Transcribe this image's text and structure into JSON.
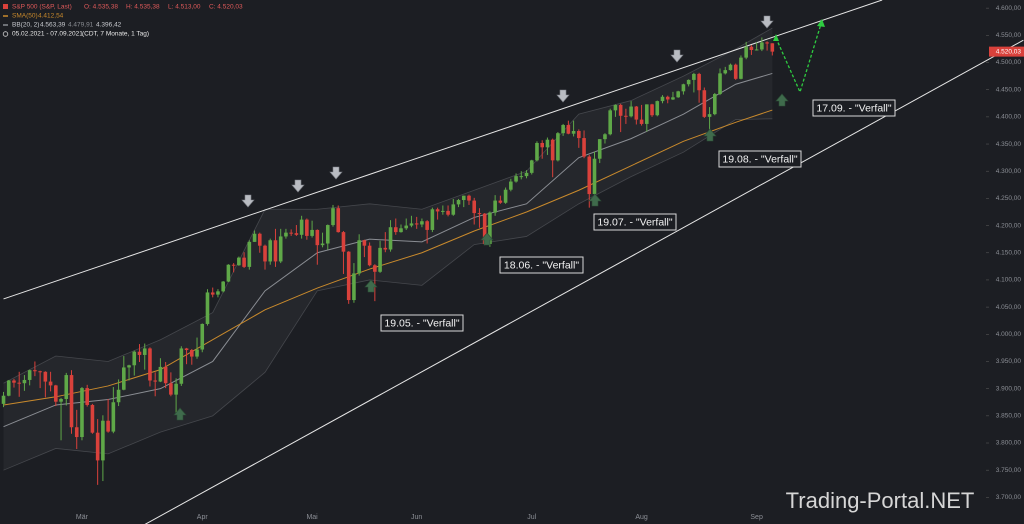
{
  "chart_data": {
    "type": "candlestick",
    "header": {
      "instrument": "S&P 500 (S&P, Last)",
      "ohlc_labels": [
        "O: 4.535,38",
        "H: 4.535,38",
        "L: 4.513,00",
        "C: 4.520,03"
      ],
      "date_range": "05.02.2021 - 07.09.2021",
      "period": "(CDT, 7 Monate, 1 Tag)"
    },
    "categories": [
      null,
      null,
      null,
      null,
      null,
      null,
      null,
      null,
      null,
      null,
      null,
      null,
      null,
      null,
      null,
      "Mär",
      null,
      null,
      null,
      null,
      null,
      null,
      null,
      null,
      null,
      null,
      null,
      null,
      null,
      null,
      null,
      null,
      null,
      null,
      null,
      null,
      null,
      null,
      "Apr",
      null,
      null,
      null,
      null,
      null,
      null,
      null,
      null,
      null,
      null,
      null,
      null,
      null,
      null,
      null,
      null,
      null,
      null,
      null,
      null,
      "Mai",
      null,
      null,
      null,
      null,
      null,
      null,
      null,
      null,
      null,
      null,
      null,
      null,
      null,
      null,
      null,
      null,
      null,
      null,
      null,
      "Jun",
      null,
      null,
      null,
      null,
      null,
      null,
      null,
      null,
      null,
      null,
      null,
      null,
      null,
      null,
      null,
      null,
      null,
      null,
      null,
      null,
      null,
      "Jul",
      null,
      null,
      null,
      null,
      null,
      null,
      null,
      null,
      null,
      null,
      null,
      null,
      null,
      null,
      null,
      null,
      null,
      null,
      null,
      null,
      "Aug",
      null,
      null,
      null,
      null,
      null,
      null,
      null,
      null,
      null,
      null,
      null,
      null,
      null,
      null,
      null,
      null,
      null,
      null,
      null,
      null,
      null,
      "Sep",
      null,
      null,
      null
    ],
    "open": [
      3872,
      3887,
      3915,
      3911,
      3910,
      3916,
      3934,
      3932,
      3931,
      3913,
      3906,
      3876,
      3881,
      3925,
      3829,
      3811,
      3901,
      3870,
      3819,
      3768,
      3841,
      3821,
      3875,
      3898,
      3939,
      3943,
      3968,
      3962,
      3974,
      3915,
      3913,
      3940,
      3910,
      3889,
      3909,
      3974,
      3971,
      3959,
      3972,
      4019,
      4077,
      4073,
      4079,
      4097,
      4128,
      4127,
      4141,
      4124,
      4170,
      4185,
      4163,
      4134,
      4173,
      4134,
      4180,
      4187,
      4186,
      4183,
      4211,
      4181,
      4192,
      4164,
      4167,
      4201,
      4232,
      4188,
      4152,
      4063,
      4112,
      4173,
      4163,
      4127,
      4115,
      4159,
      4156,
      4197,
      4188,
      4195,
      4200,
      4204,
      4202,
      4208,
      4192,
      4230,
      4226,
      4227,
      4220,
      4239,
      4247,
      4255,
      4246,
      4223,
      4222,
      4166,
      4224,
      4246,
      4242,
      4266,
      4281,
      4291,
      4291,
      4297,
      4320,
      4352,
      4344,
      4358,
      4320,
      4370,
      4385,
      4369,
      4374,
      4361,
      4327,
      4258,
      4323,
      4359,
      4368,
      4412,
      4422,
      4402,
      4401,
      4419,
      4395,
      4387,
      4423,
      4403,
      4429,
      4437,
      4432,
      4436,
      4447,
      4460,
      4468,
      4479,
      4449,
      4400,
      4405,
      4442,
      4480,
      4486,
      4496,
      4470,
      4509,
      4529,
      4523,
      4524,
      4537,
      4535.38
    ],
    "high": [
      3894,
      3916,
      3918,
      3931,
      3925,
      3935,
      3950,
      3933,
      3932,
      3931,
      3907,
      3883,
      3929,
      3934,
      3861,
      3903,
      3907,
      3872,
      3844,
      3851,
      3881,
      3903,
      3917,
      3960,
      3944,
      3970,
      3982,
      3983,
      3976,
      3930,
      3956,
      3949,
      3930,
      3919,
      3978,
      3975,
      3973,
      3994,
      4020,
      4083,
      4086,
      4083,
      4098,
      4129,
      4131,
      4143,
      4151,
      4173,
      4191,
      4187,
      4165,
      4176,
      4194,
      4194,
      4194,
      4193,
      4201,
      4218,
      4213,
      4209,
      4193,
      4187,
      4202,
      4238,
      4237,
      4190,
      4153,
      4131,
      4184,
      4174,
      4169,
      4129,
      4172,
      4188,
      4210,
      4213,
      4202,
      4213,
      4218,
      4216,
      4213,
      4210,
      4233,
      4233,
      4237,
      4237,
      4249,
      4249,
      4255,
      4257,
      4251,
      4232,
      4223,
      4226,
      4256,
      4255,
      4270,
      4286,
      4296,
      4300,
      4302,
      4321,
      4355,
      4357,
      4362,
      4360,
      4372,
      4387,
      4393,
      4393,
      4377,
      4375,
      4330,
      4336,
      4359,
      4370,
      4415,
      4423,
      4424,
      4415,
      4429,
      4420,
      4422,
      4423,
      4424,
      4430,
      4440,
      4439,
      4446,
      4448,
      4461,
      4469,
      4481,
      4481,
      4454,
      4418,
      4444,
      4489,
      4492,
      4498,
      4498,
      4513,
      4538,
      4532,
      4537,
      4546,
      4539,
      4535.38
    ],
    "low": [
      3866,
      3886,
      3902,
      3885,
      3896,
      3906,
      3923,
      3901,
      3884,
      3895,
      3868,
      3805,
      3869,
      3817,
      3789,
      3805,
      3867,
      3817,
      3723,
      3730,
      3819,
      3818,
      3868,
      3897,
      3915,
      3924,
      3949,
      3935,
      3904,
      3886,
      3912,
      3901,
      3886,
      3853,
      3905,
      3945,
      3944,
      3955,
      3967,
      4016,
      4068,
      4068,
      4077,
      4096,
      4114,
      4126,
      4122,
      4119,
      4170,
      4150,
      4119,
      4128,
      4124,
      4131,
      4176,
      4181,
      4181,
      4176,
      4174,
      4178,
      4128,
      4160,
      4156,
      4198,
      4187,
      4111,
      4056,
      4058,
      4108,
      4142,
      4125,
      4061,
      4113,
      4151,
      4152,
      4183,
      4187,
      4192,
      4197,
      4194,
      4197,
      4167,
      4188,
      4211,
      4220,
      4217,
      4218,
      4234,
      4234,
      4238,
      4202,
      4196,
      4164,
      4161,
      4218,
      4240,
      4240,
      4263,
      4279,
      4285,
      4287,
      4294,
      4318,
      4323,
      4330,
      4289,
      4318,
      4365,
      4368,
      4364,
      4343,
      4324,
      4233,
      4255,
      4315,
      4351,
      4366,
      4400,
      4372,
      4387,
      4399,
      4386,
      4384,
      4373,
      4400,
      4401,
      4425,
      4425,
      4431,
      4435,
      4441,
      4456,
      4445,
      4426,
      4398,
      4368,
      4403,
      4440,
      4478,
      4485,
      4468,
      4469,
      4506,
      4514,
      4522,
      4521,
      4522,
      4513
    ],
    "close": [
      3887,
      3915,
      3911,
      3910,
      3916,
      3934,
      3932,
      3931,
      3913,
      3906,
      3876,
      3881,
      3925,
      3829,
      3811,
      3901,
      3870,
      3819,
      3768,
      3841,
      3821,
      3875,
      3898,
      3939,
      3943,
      3968,
      3962,
      3974,
      3915,
      3913,
      3940,
      3910,
      3889,
      3909,
      3974,
      3971,
      3959,
      3972,
      4019,
      4077,
      4073,
      4079,
      4097,
      4128,
      4127,
      4141,
      4124,
      4170,
      4185,
      4163,
      4134,
      4173,
      4134,
      4180,
      4187,
      4186,
      4183,
      4211,
      4181,
      4192,
      4164,
      4167,
      4201,
      4232,
      4188,
      4152,
      4063,
      4112,
      4173,
      4163,
      4127,
      4115,
      4159,
      4156,
      4197,
      4188,
      4195,
      4200,
      4204,
      4202,
      4208,
      4192,
      4230,
      4226,
      4227,
      4220,
      4239,
      4247,
      4255,
      4246,
      4223,
      4222,
      4166,
      4224,
      4246,
      4242,
      4266,
      4281,
      4291,
      4291,
      4297,
      4320,
      4352,
      4344,
      4358,
      4320,
      4370,
      4385,
      4369,
      4374,
      4361,
      4327,
      4258,
      4323,
      4359,
      4368,
      4412,
      4422,
      4402,
      4401,
      4419,
      4395,
      4387,
      4423,
      4403,
      4429,
      4437,
      4432,
      4436,
      4447,
      4460,
      4468,
      4479,
      4449,
      4400,
      4405,
      4442,
      4480,
      4486,
      4496,
      4470,
      4509,
      4529,
      4523,
      4524,
      4537,
      4535,
      4520.03
    ],
    "up_color": "#5fa848",
    "down_color": "#d9413b",
    "sma": {
      "name": "SMA(50)",
      "color": "#c98a2c",
      "value_label": "4.412,54",
      "x": [
        0,
        10,
        20,
        30,
        40,
        50,
        60,
        70,
        80,
        90,
        100,
        110,
        120,
        130,
        140,
        147
      ],
      "values": [
        3870,
        3885,
        3905,
        3935,
        3990,
        4045,
        4085,
        4120,
        4150,
        4190,
        4225,
        4265,
        4310,
        4355,
        4390,
        4412.54
      ]
    },
    "bollinger": {
      "name": "BB(20, 2)",
      "color": "#8a8d93",
      "value_labels": [
        "4.563,39",
        "4.479,91",
        "4.396,42"
      ],
      "x": [
        0,
        10,
        20,
        30,
        40,
        50,
        60,
        70,
        80,
        90,
        100,
        110,
        120,
        130,
        140,
        147
      ],
      "upper": [
        3910,
        3960,
        3950,
        3990,
        4040,
        4230,
        4230,
        4240,
        4230,
        4265,
        4300,
        4405,
        4430,
        4475,
        4525,
        4563.39
      ],
      "middle": [
        3830,
        3870,
        3880,
        3900,
        3950,
        4080,
        4150,
        4175,
        4170,
        4215,
        4240,
        4325,
        4360,
        4405,
        4460,
        4479.91
      ],
      "lower": [
        3750,
        3790,
        3780,
        3820,
        3850,
        3930,
        4080,
        4100,
        4090,
        4165,
        4180,
        4240,
        4290,
        4335,
        4395,
        4396.42
      ]
    },
    "trendlines": [
      {
        "x": [
          0,
          168
        ],
        "values": [
          4065,
          4615
        ]
      },
      {
        "x": [
          27,
          195
        ],
        "values": [
          3650,
          4541
        ]
      }
    ],
    "last_price": {
      "value": 4520.03,
      "label": "4.520,03"
    },
    "ylim": [
      3651,
      4615
    ],
    "yticks": [
      {
        "value": 4600,
        "label": "4.600,00"
      },
      {
        "value": 4550,
        "label": "4.550,00"
      },
      {
        "value": 4500,
        "label": "4.500,00"
      },
      {
        "value": 4450,
        "label": "4.450,00"
      },
      {
        "value": 4400,
        "label": "4.400,00"
      },
      {
        "value": 4350,
        "label": "4.350,00"
      },
      {
        "value": 4300,
        "label": "4.300,00"
      },
      {
        "value": 4250,
        "label": "4.250,00"
      },
      {
        "value": 4200,
        "label": "4.200,00"
      },
      {
        "value": 4150,
        "label": "4.150,00"
      },
      {
        "value": 4100,
        "label": "4.100,00"
      },
      {
        "value": 4050,
        "label": "4.050,00"
      },
      {
        "value": 4000,
        "label": "4.000,00"
      },
      {
        "value": 3950,
        "label": "3.950,00"
      },
      {
        "value": 3900,
        "label": "3.900,00"
      },
      {
        "value": 3850,
        "label": "3.850,00"
      },
      {
        "value": 3800,
        "label": "3.800,00"
      },
      {
        "value": 3750,
        "label": "3.750,00"
      },
      {
        "value": 3700,
        "label": "3.700,00"
      }
    ],
    "grid": false,
    "annotations": [
      "19.05. - \"Verfall\"",
      "18.06. - \"Verfall\"",
      "19.07. - \"Verfall\"",
      "19.08. - \"Verfall\"",
      "17.09. - \"Verfall\""
    ]
  },
  "watermark": "Trading-Portal.NET"
}
